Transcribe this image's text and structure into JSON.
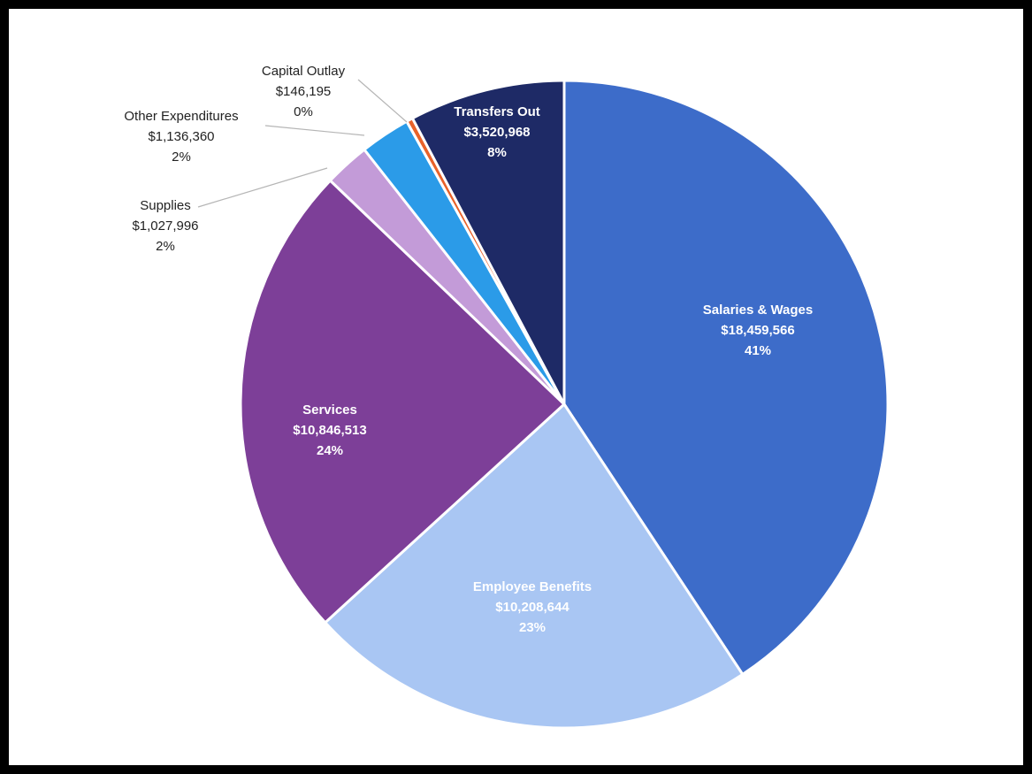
{
  "chart_data": {
    "type": "pie",
    "title": "",
    "slices": [
      {
        "label": "Salaries & Wages",
        "value": 18459566,
        "value_label": "$18,459,566",
        "percent_label": "41%",
        "color": "#3d6cc9",
        "text_color": "#ffffff"
      },
      {
        "label": "Employee Benefits",
        "value": 10208644,
        "value_label": "$10,208,644",
        "percent_label": "23%",
        "color": "#a9c6f3",
        "text_color": "#ffffff"
      },
      {
        "label": "Services",
        "value": 10846513,
        "value_label": "$10,846,513",
        "percent_label": "24%",
        "color": "#7d3f98",
        "text_color": "#ffffff"
      },
      {
        "label": "Supplies",
        "value": 1027996,
        "value_label": "$1,027,996",
        "percent_label": "2%",
        "color": "#c39bd8",
        "text_color": "#222222"
      },
      {
        "label": "Other Expenditures",
        "value": 1136360,
        "value_label": "$1,136,360",
        "percent_label": "2%",
        "color": "#2b9be8",
        "text_color": "#222222"
      },
      {
        "label": "Capital Outlay",
        "value": 146195,
        "value_label": "$146,195",
        "percent_label": "0%",
        "color": "#e8622a",
        "text_color": "#222222"
      },
      {
        "label": "Transfers Out",
        "value": 3520968,
        "value_label": "$3,520,968",
        "percent_label": "8%",
        "color": "#1e2a66",
        "text_color": "#ffffff"
      }
    ]
  }
}
